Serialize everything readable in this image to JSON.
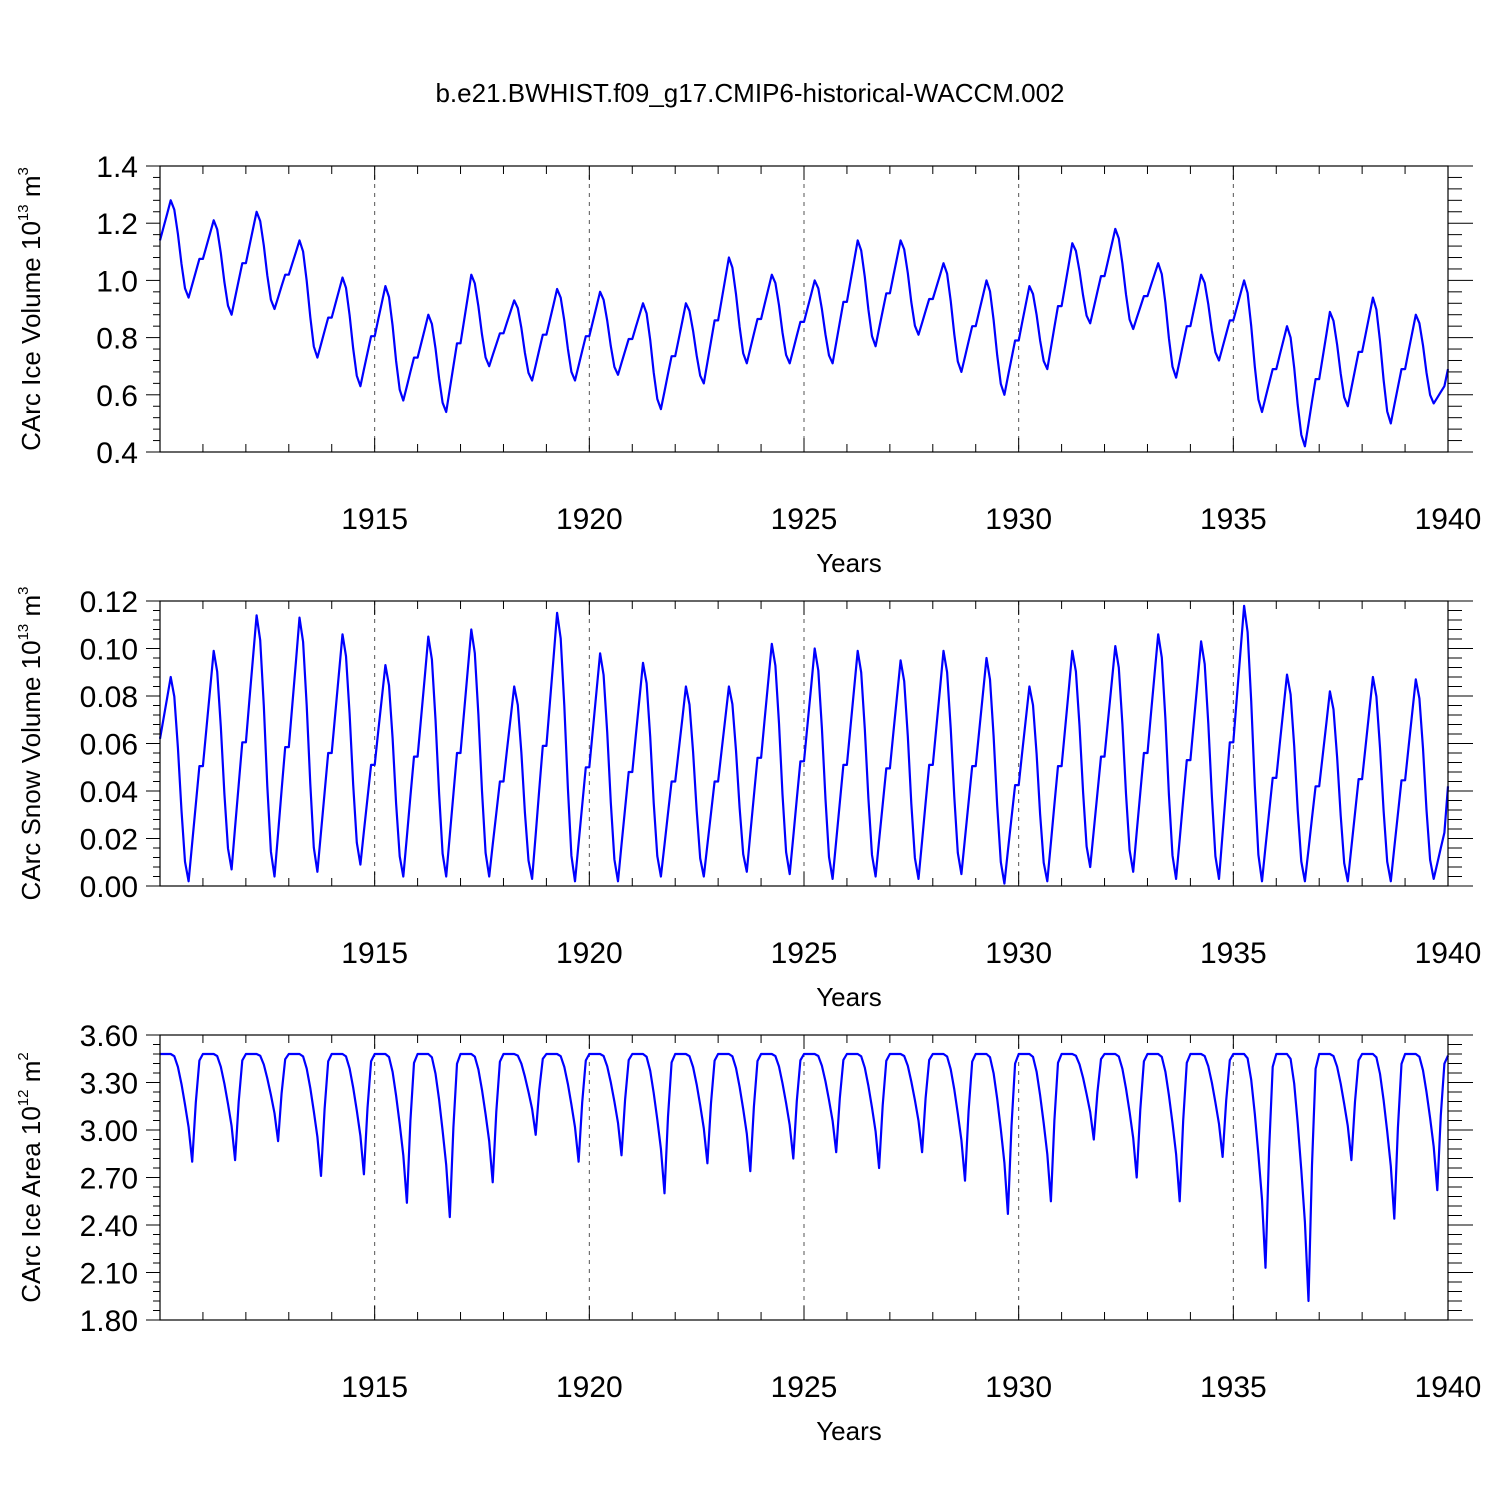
{
  "chart_data": [
    {
      "type": "line",
      "title": "b.e21.BWHIST.f09_g17.CMIP6-historical-WACCM.002",
      "ylabel_main": "CArc Ice Volume 10",
      "ylabel_exp": "13",
      "ylabel_unit": "m",
      "ylabel_unit_exp": "3",
      "xlabel": "Years",
      "xlim": [
        1910,
        1940
      ],
      "ylim": [
        0.4,
        1.4
      ],
      "xticks": [
        1915,
        1920,
        1925,
        1930,
        1935,
        1940
      ],
      "xtick_labels": [
        "1915",
        "1920",
        "1925",
        "1930",
        "1935",
        "1940"
      ],
      "yticks": [
        0.4,
        0.6,
        0.8,
        1.0,
        1.2,
        1.4
      ],
      "ytick_labels": [
        "0.4",
        "0.6",
        "0.8",
        "1.0",
        "1.2",
        "1.4"
      ],
      "series": [
        {
          "name": "CArc Ice Volume",
          "color": "#0000ff",
          "annual": {
            "max": [
              1.28,
              1.21,
              1.24,
              1.14,
              1.01,
              0.98,
              0.88,
              1.02,
              0.93,
              0.97,
              0.96,
              0.92,
              0.92,
              1.08,
              1.02,
              1.0,
              1.14,
              1.14,
              1.06,
              1.0,
              0.98,
              1.13,
              1.18,
              1.06,
              1.02,
              1.0,
              0.84,
              0.89,
              0.94,
              0.88
            ],
            "min": [
              0.94,
              0.88,
              0.9,
              0.73,
              0.63,
              0.58,
              0.54,
              0.7,
              0.65,
              0.65,
              0.67,
              0.55,
              0.64,
              0.71,
              0.71,
              0.71,
              0.77,
              0.81,
              0.68,
              0.6,
              0.69,
              0.85,
              0.83,
              0.66,
              0.72,
              0.54,
              0.42,
              0.56,
              0.5,
              0.57
            ]
          },
          "start": 1.14,
          "end": 0.69
        }
      ]
    },
    {
      "type": "line",
      "title": "",
      "ylabel_main": "CArc Snow Volume 10",
      "ylabel_exp": "13",
      "ylabel_unit": "m",
      "ylabel_unit_exp": "3",
      "xlabel": "Years",
      "xlim": [
        1910,
        1940
      ],
      "ylim": [
        0.0,
        0.12
      ],
      "xticks": [
        1915,
        1920,
        1925,
        1930,
        1935,
        1940
      ],
      "xtick_labels": [
        "1915",
        "1920",
        "1925",
        "1930",
        "1935",
        "1940"
      ],
      "yticks": [
        0.0,
        0.02,
        0.04,
        0.06,
        0.08,
        0.1,
        0.12
      ],
      "ytick_labels": [
        "0.00",
        "0.02",
        "0.04",
        "0.06",
        "0.08",
        "0.10",
        "0.12"
      ],
      "series": [
        {
          "name": "CArc Snow Volume",
          "color": "#0000ff",
          "annual": {
            "max": [
              0.088,
              0.099,
              0.114,
              0.113,
              0.106,
              0.093,
              0.105,
              0.108,
              0.084,
              0.115,
              0.098,
              0.094,
              0.084,
              0.084,
              0.102,
              0.1,
              0.099,
              0.095,
              0.099,
              0.096,
              0.084,
              0.099,
              0.101,
              0.106,
              0.103,
              0.118,
              0.089,
              0.082,
              0.088,
              0.087
            ],
            "min": [
              0.002,
              0.007,
              0.004,
              0.006,
              0.009,
              0.004,
              0.004,
              0.004,
              0.003,
              0.002,
              0.002,
              0.004,
              0.004,
              0.006,
              0.005,
              0.003,
              0.004,
              0.003,
              0.005,
              0.001,
              0.002,
              0.008,
              0.006,
              0.003,
              0.003,
              0.002,
              0.002,
              0.002,
              0.002,
              0.003
            ]
          },
          "start": 0.062,
          "end": 0.042
        }
      ]
    },
    {
      "type": "line",
      "title": "",
      "ylabel_main": "CArc Ice Area 10",
      "ylabel_exp": "12",
      "ylabel_unit": "m",
      "ylabel_unit_exp": "2",
      "xlabel": "Years",
      "xlim": [
        1910,
        1940
      ],
      "ylim": [
        1.8,
        3.6
      ],
      "xticks": [
        1915,
        1920,
        1925,
        1930,
        1935,
        1940
      ],
      "xtick_labels": [
        "1915",
        "1920",
        "1925",
        "1930",
        "1935",
        "1940"
      ],
      "yticks": [
        1.8,
        2.1,
        2.4,
        2.7,
        3.0,
        3.3,
        3.6
      ],
      "ytick_labels": [
        "1.80",
        "2.10",
        "2.40",
        "2.70",
        "3.00",
        "3.30",
        "3.60"
      ],
      "series": [
        {
          "name": "CArc Ice Area",
          "color": "#0000ff",
          "annual": {
            "max": [
              3.48,
              3.48,
              3.48,
              3.48,
              3.48,
              3.48,
              3.48,
              3.48,
              3.48,
              3.48,
              3.48,
              3.48,
              3.48,
              3.48,
              3.48,
              3.48,
              3.48,
              3.48,
              3.48,
              3.48,
              3.48,
              3.48,
              3.48,
              3.48,
              3.48,
              3.48,
              3.48,
              3.48,
              3.48,
              3.48
            ],
            "min": [
              2.8,
              2.81,
              2.93,
              2.71,
              2.72,
              2.54,
              2.45,
              2.67,
              2.97,
              2.8,
              2.84,
              2.6,
              2.79,
              2.74,
              2.82,
              2.86,
              2.76,
              2.86,
              2.68,
              2.47,
              2.55,
              2.94,
              2.7,
              2.55,
              2.83,
              2.13,
              1.92,
              2.81,
              2.44,
              2.62
            ]
          },
          "start": 3.48,
          "end": 3.47
        }
      ]
    }
  ]
}
